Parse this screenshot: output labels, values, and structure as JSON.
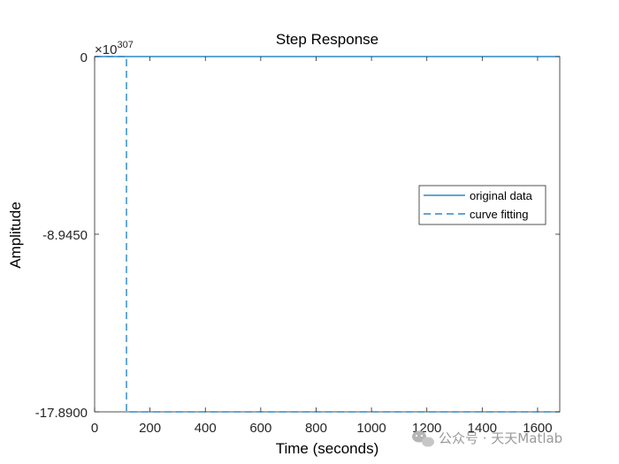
{
  "chart_data": {
    "type": "line",
    "title": "Step Response",
    "xlabel": "Time (seconds)",
    "ylabel": "Amplitude",
    "xlim": [
      0,
      1680
    ],
    "ylim": [
      -17.89,
      0
    ],
    "y_multiplier": {
      "base": "10",
      "exponent": "307"
    },
    "x_ticks": [
      {
        "value": 0,
        "label": "0"
      },
      {
        "value": 200,
        "label": "200"
      },
      {
        "value": 400,
        "label": "400"
      },
      {
        "value": 600,
        "label": "600"
      },
      {
        "value": 800,
        "label": "800"
      },
      {
        "value": 1000,
        "label": "1000"
      },
      {
        "value": 1200,
        "label": "1200"
      },
      {
        "value": 1400,
        "label": "1400"
      },
      {
        "value": 1600,
        "label": "1600"
      }
    ],
    "y_ticks": [
      {
        "value": 0,
        "label": "0"
      },
      {
        "value": -8.945,
        "label": "-8.9450"
      },
      {
        "value": -17.89,
        "label": "-17.8900"
      }
    ],
    "grid": false,
    "legend": {
      "position": "right",
      "entries": [
        "original data",
        "curve fitting"
      ]
    },
    "series": [
      {
        "name": "original data",
        "style": "solid",
        "color": "#0072BD",
        "x": [
          0,
          1680
        ],
        "y": [
          0,
          0
        ]
      },
      {
        "name": "curve fitting",
        "style": "dashed",
        "color": "#0072BD",
        "x": [
          0,
          115,
          115,
          1680
        ],
        "y": [
          0,
          0,
          -17.89,
          -17.89
        ]
      }
    ]
  },
  "watermark": {
    "icon": "wechat-icon",
    "text": "公众号 · 天天Matlab",
    "color": "#9a9a9a"
  }
}
